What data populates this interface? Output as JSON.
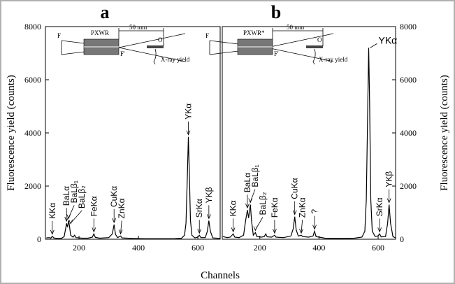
{
  "chart_data": [
    {
      "type": "line",
      "label": "a",
      "xlabel": "Channels",
      "ylabel": "Fluorescence yield (counts)",
      "y_axis_position": "left",
      "color": "#000000",
      "xlim": [
        87,
        675
      ],
      "xticks": [
        200,
        400,
        600
      ],
      "ylim": [
        0,
        8000
      ],
      "yticks": [
        0,
        2000,
        4000,
        6000,
        8000
      ],
      "x": [
        90,
        100,
        105,
        110,
        115,
        125,
        140,
        150,
        155,
        158,
        161,
        165,
        168,
        172,
        180,
        185,
        190,
        210,
        230,
        245,
        250,
        255,
        270,
        300,
        312,
        318,
        323,
        330,
        340,
        345,
        380,
        420,
        480,
        520,
        545,
        555,
        560,
        565,
        568,
        571,
        575,
        580,
        590,
        600,
        605,
        610,
        625,
        632,
        637,
        642,
        650,
        675
      ],
      "values": [
        50,
        60,
        40,
        110,
        50,
        30,
        30,
        100,
        400,
        600,
        450,
        700,
        500,
        150,
        80,
        150,
        60,
        40,
        40,
        80,
        200,
        70,
        40,
        60,
        200,
        550,
        180,
        60,
        120,
        50,
        30,
        20,
        20,
        20,
        40,
        150,
        600,
        2500,
        3850,
        2600,
        700,
        150,
        50,
        80,
        150,
        60,
        60,
        300,
        700,
        300,
        50,
        30
      ],
      "annotations": [
        {
          "text": "KKα",
          "x": 110
        },
        {
          "text": "BaLα",
          "x": 158
        },
        {
          "text": "BaLβ₁",
          "x": 165
        },
        {
          "text": "BaLβ₂",
          "x": 172
        },
        {
          "text": "FeKα",
          "x": 250
        },
        {
          "text": "CuKα",
          "x": 318
        },
        {
          "text": "ZnKα",
          "x": 340
        },
        {
          "text": "YKα",
          "x": 568
        },
        {
          "text": "SrKα",
          "x": 605
        },
        {
          "text": "YKβ",
          "x": 637
        }
      ],
      "inset": {
        "device": "PXWR",
        "distance": "50 mm",
        "origin": "O",
        "focus": "F",
        "focus2": "F'",
        "yield": "X-ray yield"
      }
    },
    {
      "type": "line",
      "label": "b",
      "ylabel": "Fluorescence yield (counts)",
      "y_axis_position": "right",
      "color": "#000000",
      "xlim": [
        73,
        659
      ],
      "xticks": [
        200,
        400,
        600
      ],
      "ylim": [
        0,
        8000
      ],
      "yticks": [
        0,
        2000,
        4000,
        6000,
        8000
      ],
      "x": [
        75,
        90,
        100,
        110,
        115,
        130,
        145,
        152,
        158,
        162,
        168,
        172,
        178,
        185,
        190,
        205,
        215,
        220,
        225,
        240,
        250,
        255,
        280,
        305,
        313,
        318,
        323,
        330,
        340,
        345,
        365,
        380,
        385,
        390,
        420,
        470,
        520,
        545,
        555,
        560,
        565,
        568,
        571,
        575,
        580,
        590,
        600,
        605,
        610,
        625,
        632,
        637,
        642,
        650,
        659
      ],
      "values": [
        100,
        60,
        80,
        200,
        80,
        60,
        150,
        700,
        1100,
        800,
        1300,
        700,
        150,
        250,
        100,
        80,
        100,
        200,
        90,
        80,
        150,
        80,
        60,
        120,
        400,
        850,
        350,
        120,
        150,
        100,
        80,
        120,
        300,
        100,
        40,
        30,
        40,
        80,
        300,
        1500,
        5000,
        7200,
        5200,
        1500,
        300,
        100,
        130,
        200,
        90,
        100,
        600,
        1300,
        600,
        100,
        50
      ],
      "annotations": [
        {
          "text": "KKα",
          "x": 110
        },
        {
          "text": "BaLα",
          "x": 158
        },
        {
          "text": "BaLβ₁",
          "x": 168
        },
        {
          "text": "BaLβ₂",
          "x": 185
        },
        {
          "text": "FeKα",
          "x": 250
        },
        {
          "text": "CuKα",
          "x": 318
        },
        {
          "text": "ZnKα",
          "x": 340
        },
        {
          "text": "?",
          "x": 385
        },
        {
          "text": "SrKα",
          "x": 605
        },
        {
          "text": "YKβ",
          "x": 637
        }
      ],
      "peak_label": {
        "text": "YKα",
        "x": 568
      },
      "inset": {
        "device": "PXWR*",
        "distance": "50 mm",
        "origin": "O",
        "focus": "F",
        "focus2": "F'",
        "yield": "X-ray yield"
      }
    }
  ]
}
